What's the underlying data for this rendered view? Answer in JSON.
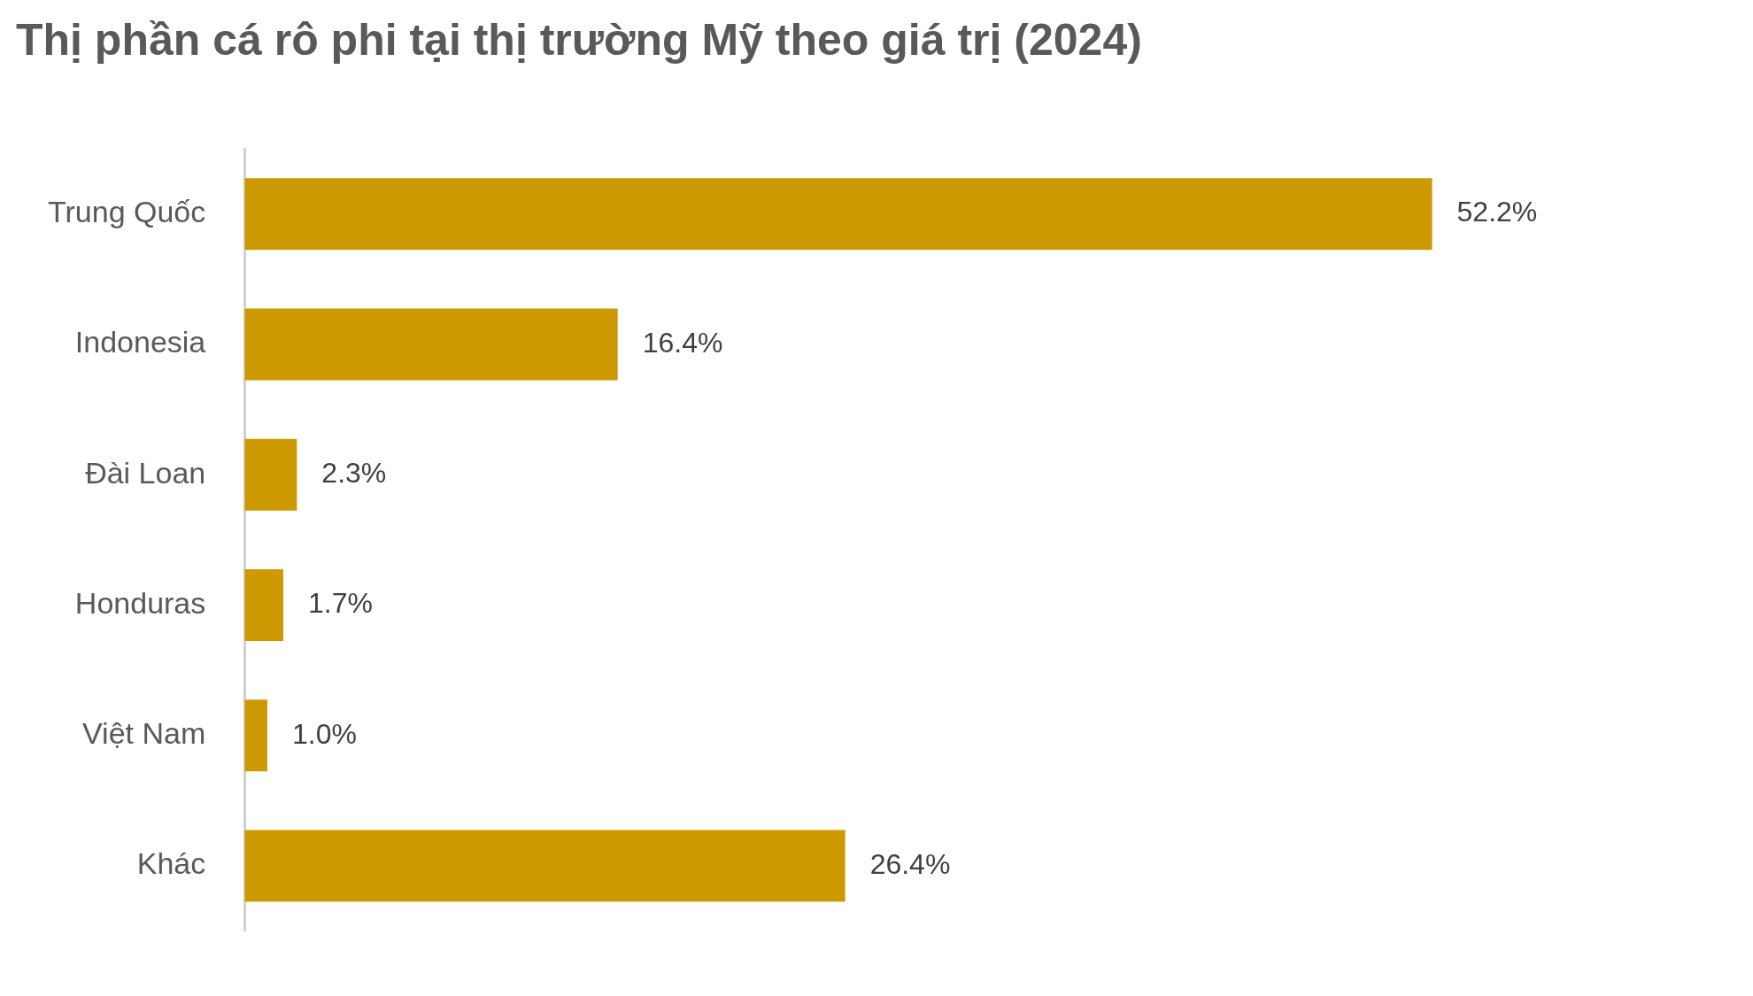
{
  "chart_data": {
    "type": "bar",
    "orientation": "horizontal",
    "title": "Thị phần cá rô phi tại thị trường Mỹ theo giá trị (2024)",
    "categories": [
      "Trung Quốc",
      "Indonesia",
      "Đài Loan",
      "Honduras",
      "Việt Nam",
      "Khác"
    ],
    "values": [
      52.2,
      16.4,
      2.3,
      1.7,
      1.0,
      26.4
    ],
    "value_labels": [
      "52.2%",
      "16.4%",
      "2.3%",
      "1.7%",
      "1.0%",
      "26.4%"
    ],
    "color": "#cc9a00",
    "tick_labels": "y",
    "legend": false
  }
}
